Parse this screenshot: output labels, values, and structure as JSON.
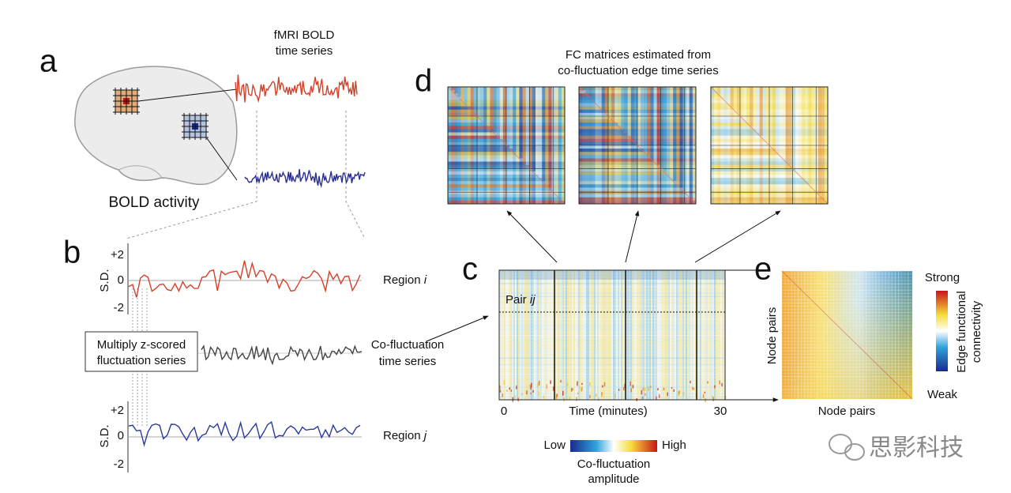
{
  "panel_a": {
    "label": "a",
    "signal_title": [
      "fMRI BOLD",
      "time series"
    ],
    "caption": "BOLD activity"
  },
  "panel_b": {
    "label": "b",
    "axes": [
      {
        "label": "S.D.",
        "ticks": [
          "+2",
          "0",
          "-2"
        ]
      },
      {
        "label": "S.D.",
        "ticks": [
          "+2",
          "0",
          "-2"
        ]
      }
    ],
    "region_i": {
      "text": "Region",
      "index": "i"
    },
    "region_j": {
      "text": "Region",
      "index": "j"
    },
    "multiply_box": [
      "Multiply z-scored",
      "fluctuation series"
    ],
    "cofluctuation": [
      "Co-fluctuation",
      "time series"
    ]
  },
  "panel_c": {
    "label": "c",
    "pair": {
      "text": "Pair",
      "index": "ij"
    },
    "x_start": "0",
    "x_label": "Time (minutes)",
    "x_end": "30",
    "colorbar": {
      "low": "Low",
      "high": "High",
      "title": [
        "Co-fluctuation",
        "amplitude"
      ]
    }
  },
  "panel_d": {
    "label": "d",
    "title": [
      "FC matrices estimated from",
      "co-fluctuation edge time series"
    ]
  },
  "panel_e": {
    "label": "e",
    "x_label": "Node pairs",
    "y_label": "Node pairs",
    "colorbar": {
      "strong": "Strong",
      "weak": "Weak",
      "title": [
        "Edge functional",
        "connectivity"
      ]
    }
  },
  "watermark": "思影科技"
}
